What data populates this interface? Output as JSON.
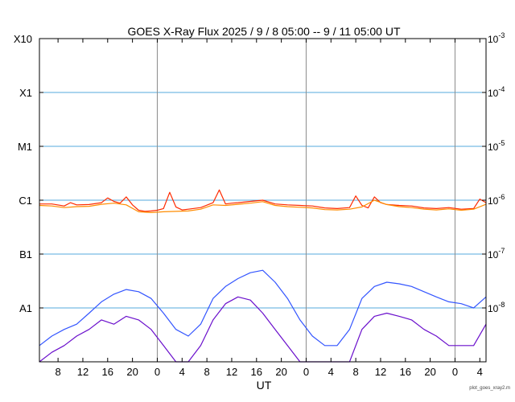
{
  "chart_data": {
    "type": "line",
    "title": "GOES X-Ray Flux   2025 /  9 /  8   05:00 --  9 / 11   05:00   UT",
    "xlabel": "UT",
    "ylabel": "",
    "y_scale": "log",
    "ylim": [
      1e-09,
      0.001
    ],
    "xlim_hours": [
      0,
      72
    ],
    "grid": true,
    "legend": "none",
    "y_left_ticks": [
      {
        "label": "X10",
        "value": 0.001
      },
      {
        "label": "X1",
        "value": 0.0001
      },
      {
        "label": "M1",
        "value": 1e-05
      },
      {
        "label": "C1",
        "value": 1e-06
      },
      {
        "label": "B1",
        "value": 1e-07
      },
      {
        "label": "A1",
        "value": 1e-08
      }
    ],
    "y_right_ticks": [
      {
        "base": "10",
        "exp": "-3",
        "value": 0.001
      },
      {
        "base": "10",
        "exp": "-4",
        "value": 0.0001
      },
      {
        "base": "10",
        "exp": "-5",
        "value": 1e-05
      },
      {
        "base": "10",
        "exp": "-6",
        "value": 1e-06
      },
      {
        "base": "10",
        "exp": "-7",
        "value": 1e-07
      },
      {
        "base": "10",
        "exp": "-8",
        "value": 1e-08
      }
    ],
    "x_ticks": [
      {
        "label": "8",
        "hour": 3
      },
      {
        "label": "12",
        "hour": 7
      },
      {
        "label": "16",
        "hour": 11
      },
      {
        "label": "20",
        "hour": 15
      },
      {
        "label": "0",
        "hour": 19
      },
      {
        "label": "4",
        "hour": 23
      },
      {
        "label": "8",
        "hour": 27
      },
      {
        "label": "12",
        "hour": 31
      },
      {
        "label": "16",
        "hour": 35
      },
      {
        "label": "20",
        "hour": 39
      },
      {
        "label": "0",
        "hour": 43
      },
      {
        "label": "4",
        "hour": 47
      },
      {
        "label": "8",
        "hour": 51
      },
      {
        "label": "12",
        "hour": 55
      },
      {
        "label": "16",
        "hour": 59
      },
      {
        "label": "20",
        "hour": 63
      },
      {
        "label": "0",
        "hour": 67
      },
      {
        "label": "4",
        "hour": 71
      }
    ],
    "day_boundaries_hours": [
      19,
      43,
      67
    ],
    "series": [
      {
        "key": "long_primary",
        "color": "#ff2a00",
        "x": [
          0,
          2,
          4,
          5,
          6,
          8,
          10,
          11,
          12,
          13,
          14,
          15,
          16,
          17,
          18,
          19,
          20,
          21,
          22,
          23,
          24,
          26,
          28,
          29,
          30,
          31,
          32,
          34,
          36,
          38,
          40,
          42,
          44,
          46,
          48,
          50,
          51,
          52,
          53,
          54,
          55,
          56,
          58,
          60,
          62,
          64,
          66,
          68,
          70,
          71,
          72
        ],
        "y": [
          8.5e-07,
          8.5e-07,
          7.8e-07,
          9e-07,
          8.2e-07,
          8.3e-07,
          9e-07,
          1.1e-06,
          9.5e-07,
          8.8e-07,
          1.15e-06,
          8.2e-07,
          6.5e-07,
          6.2e-07,
          6.3e-07,
          6.5e-07,
          7e-07,
          1.4e-06,
          7.5e-07,
          6.6e-07,
          6.8e-07,
          7.3e-07,
          9e-07,
          1.55e-06,
          8.5e-07,
          8.8e-07,
          9e-07,
          9.5e-07,
          1e-06,
          8.5e-07,
          8.2e-07,
          8e-07,
          7.8e-07,
          7.2e-07,
          7e-07,
          7.3e-07,
          1.2e-06,
          8e-07,
          7.2e-07,
          1.15e-06,
          9e-07,
          8.3e-07,
          8e-07,
          7.8e-07,
          7.2e-07,
          7e-07,
          7.3e-07,
          6.8e-07,
          7e-07,
          1.05e-06,
          9e-07
        ]
      },
      {
        "key": "long_secondary",
        "color": "#ff8c00",
        "x": [
          0,
          2,
          4,
          6,
          8,
          10,
          12,
          14,
          16,
          18,
          20,
          22,
          24,
          26,
          28,
          30,
          32,
          34,
          36,
          38,
          40,
          42,
          44,
          46,
          48,
          50,
          52,
          54,
          56,
          58,
          60,
          62,
          64,
          66,
          68,
          70,
          72
        ],
        "y": [
          8e-07,
          7.8e-07,
          7.3e-07,
          7.6e-07,
          7.7e-07,
          8.4e-07,
          8.8e-07,
          8.2e-07,
          6.1e-07,
          5.9e-07,
          6.1e-07,
          6.2e-07,
          6.3e-07,
          6.8e-07,
          8.2e-07,
          8e-07,
          8.4e-07,
          8.8e-07,
          9.4e-07,
          8e-07,
          7.6e-07,
          7.4e-07,
          7.2e-07,
          6.7e-07,
          6.6e-07,
          6.8e-07,
          7.5e-07,
          1e-06,
          8.3e-07,
          7.6e-07,
          7.3e-07,
          6.8e-07,
          6.6e-07,
          6.9e-07,
          6.5e-07,
          6.8e-07,
          8.4e-07
        ]
      },
      {
        "key": "short_primary",
        "color": "#3355ff",
        "x": [
          0,
          2,
          4,
          6,
          8,
          10,
          12,
          14,
          16,
          18,
          20,
          22,
          24,
          26,
          28,
          30,
          32,
          34,
          36,
          38,
          40,
          42,
          44,
          46,
          48,
          50,
          52,
          54,
          56,
          58,
          60,
          62,
          64,
          66,
          68,
          70,
          72
        ],
        "y": [
          2e-09,
          3e-09,
          4e-09,
          5e-09,
          8e-09,
          1.3e-08,
          1.8e-08,
          2.2e-08,
          2e-08,
          1.5e-08,
          8e-09,
          4e-09,
          3e-09,
          5e-09,
          1.5e-08,
          2.5e-08,
          3.5e-08,
          4.5e-08,
          5e-08,
          3e-08,
          1.5e-08,
          6e-09,
          3e-09,
          2e-09,
          2e-09,
          4e-09,
          1.5e-08,
          2.5e-08,
          3e-08,
          2.8e-08,
          2.5e-08,
          2e-08,
          1.6e-08,
          1.3e-08,
          1.2e-08,
          1e-08,
          1.6e-08
        ]
      },
      {
        "key": "short_secondary",
        "color": "#6a0fcc",
        "x": [
          0,
          2,
          4,
          6,
          8,
          10,
          12,
          14,
          16,
          18,
          20,
          22,
          24,
          26,
          28,
          30,
          32,
          34,
          36,
          38,
          40,
          42,
          44,
          46,
          48,
          50,
          52,
          54,
          56,
          58,
          60,
          62,
          64,
          66,
          68,
          70,
          72
        ],
        "y": [
          1e-09,
          1.5e-09,
          2e-09,
          3e-09,
          4e-09,
          6e-09,
          5e-09,
          7e-09,
          6e-09,
          4e-09,
          2e-09,
          1e-09,
          1e-09,
          2e-09,
          6e-09,
          1.2e-08,
          1.6e-08,
          1.4e-08,
          8e-09,
          4e-09,
          2e-09,
          1e-09,
          1e-09,
          1e-09,
          1e-09,
          1e-09,
          4e-09,
          7e-09,
          8e-09,
          7e-09,
          6e-09,
          4e-09,
          3e-09,
          2e-09,
          2e-09,
          2e-09,
          5e-09
        ]
      }
    ]
  },
  "footnote": "plot_goes_xray2.m"
}
